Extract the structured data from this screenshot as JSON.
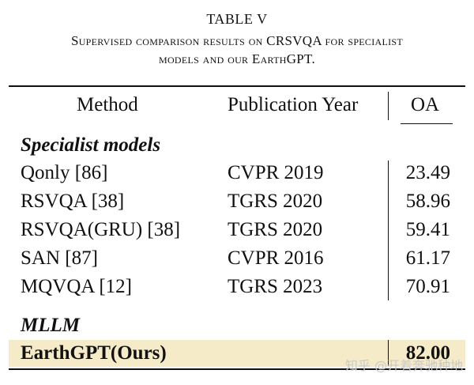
{
  "caption": {
    "label": "TABLE V",
    "line1": "Supervised comparison results on CRSVQA for specialist",
    "line2": "models and our EarthGPT."
  },
  "table": {
    "headers": {
      "method": "Method",
      "year": "Publication Year",
      "oa": "OA"
    },
    "sections": [
      {
        "title": "Specialist models",
        "rows": [
          {
            "method": "Qonly [86]",
            "year": "CVPR 2019",
            "oa": "23.49"
          },
          {
            "method": "RSVQA [38]",
            "year": "TGRS 2020",
            "oa": "58.96"
          },
          {
            "method": "RSVQA(GRU) [38]",
            "year": "TGRS 2020",
            "oa": "59.41"
          },
          {
            "method": "SAN [87]",
            "year": "CVPR 2016",
            "oa": "61.17"
          },
          {
            "method": "MQVQA [12]",
            "year": "TGRS 2023",
            "oa": "70.91"
          }
        ]
      },
      {
        "title": "MLLM",
        "rows": [
          {
            "method": "EarthGPT(Ours)",
            "year": "",
            "oa": "82.00"
          }
        ]
      }
    ],
    "highlight_color": "#f6ebc9"
  },
  "watermark": "知乎 @开着奔驰种地"
}
